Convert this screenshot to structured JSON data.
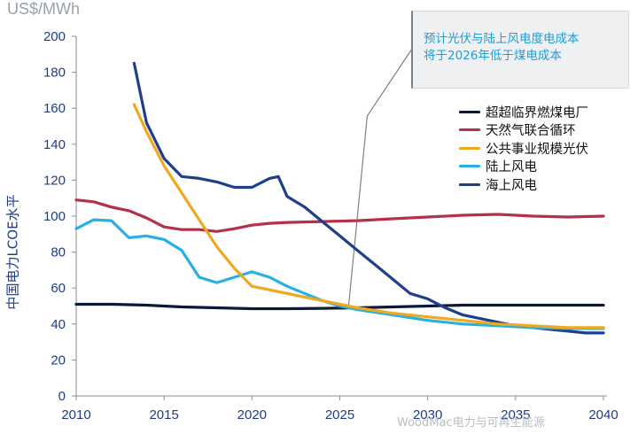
{
  "chart_data": {
    "type": "line",
    "unit_label": "US$/MWh",
    "ylabel": "中国电力LCOE水平",
    "xlabel": "",
    "xlim": [
      2010,
      2040
    ],
    "ylim": [
      0,
      200
    ],
    "xticks": [
      2010,
      2015,
      2020,
      2025,
      2030,
      2035,
      2040
    ],
    "yticks": [
      0,
      20,
      40,
      60,
      80,
      100,
      120,
      140,
      160,
      180,
      200
    ],
    "grid": false,
    "legend_position": "right",
    "annotation": {
      "lines": [
        "预计光伏与陆上风电度电成本",
        "将于2026年低于煤电成本"
      ],
      "point": [
        2025.5,
        50
      ]
    },
    "series": [
      {
        "name": "超超临界燃煤电厂",
        "color": "#0b1a3a",
        "x": [
          2010,
          2012,
          2014,
          2016,
          2018,
          2020,
          2022,
          2024,
          2026,
          2028,
          2030,
          2032,
          2034,
          2036,
          2038,
          2040
        ],
        "y": [
          51,
          51,
          50.5,
          49.5,
          49,
          48.5,
          48.5,
          48.7,
          49,
          49.5,
          50,
          50.5,
          50.5,
          50.5,
          50.5,
          50.5
        ]
      },
      {
        "name": "天然气联合循环",
        "color": "#b5304a",
        "x": [
          2010,
          2011,
          2012,
          2013,
          2014,
          2015,
          2016,
          2017,
          2018,
          2019,
          2020,
          2021,
          2022,
          2024,
          2026,
          2028,
          2030,
          2032,
          2034,
          2036,
          2038,
          2040
        ],
        "y": [
          109,
          108,
          105,
          103,
          99,
          94,
          92.5,
          92.5,
          91.5,
          93,
          95,
          96,
          96.5,
          97,
          97.5,
          98.5,
          99.5,
          100.5,
          101,
          100,
          99.5,
          100
        ]
      },
      {
        "name": "公共事业规模光伏",
        "color": "#f0a81f",
        "x": [
          2013.3,
          2014,
          2015,
          2016,
          2017,
          2018,
          2019,
          2020,
          2021,
          2022,
          2023,
          2024,
          2025,
          2026,
          2028,
          2030,
          2032,
          2034,
          2036,
          2038,
          2040
        ],
        "y": [
          162,
          147,
          128,
          113,
          98,
          83,
          71,
          61,
          59,
          57,
          55,
          53,
          51,
          49,
          46,
          44,
          42,
          40,
          39,
          38,
          38
        ]
      },
      {
        "name": "陆上风电",
        "color": "#27b0e3",
        "x": [
          2010,
          2011,
          2012,
          2013,
          2014,
          2015,
          2016,
          2017,
          2018,
          2019,
          2020,
          2021,
          2022,
          2023,
          2024,
          2025,
          2026,
          2028,
          2030,
          2032,
          2034,
          2036,
          2038,
          2040
        ],
        "y": [
          93,
          98,
          97.5,
          88,
          89,
          87,
          81,
          66,
          63,
          66,
          69,
          66,
          61,
          57,
          53,
          50,
          48,
          45,
          42,
          40,
          39,
          38,
          37.5,
          37.5
        ]
      },
      {
        "name": "海上风电",
        "color": "#1f3e8c",
        "x": [
          2013.3,
          2014,
          2015,
          2016,
          2017,
          2018,
          2019,
          2020,
          2021,
          2021.5,
          2022,
          2023,
          2024,
          2025,
          2026,
          2027,
          2028,
          2029,
          2030,
          2031,
          2032,
          2033,
          2034,
          2035,
          2036,
          2037,
          2038,
          2039,
          2040
        ],
        "y": [
          185,
          152,
          132,
          122,
          121,
          119,
          116,
          116,
          121,
          122,
          111,
          105,
          97,
          89,
          81,
          73,
          65,
          57,
          54,
          49,
          45,
          43,
          41,
          39,
          38,
          37,
          36,
          35,
          35
        ]
      }
    ]
  },
  "watermark": "WoodMac电力与可再生能源"
}
